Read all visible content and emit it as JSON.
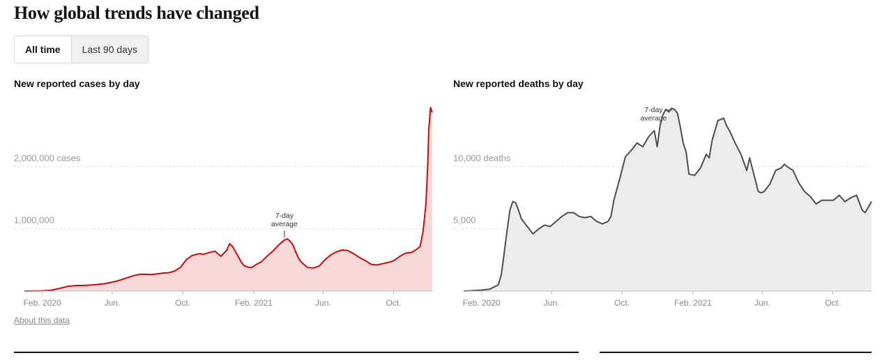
{
  "page": {
    "title": "How global trends have changed",
    "toggle": {
      "options": [
        "All time",
        "Last 90 days"
      ],
      "selected": "All time"
    },
    "about_link": "About this data"
  },
  "chart_data": [
    {
      "id": "cases",
      "type": "area",
      "title": "New reported cases by day",
      "line_color": "#cc0a0a",
      "fill_color": "#f7d9d9",
      "x_range": [
        0,
        706
      ],
      "ylim": [
        0,
        3000000
      ],
      "y_ticks": [
        {
          "value": 1000000,
          "label": "1,000,000"
        },
        {
          "value": 2000000,
          "label": "2,000,000 cases"
        }
      ],
      "x_ticks": [
        {
          "day": 31,
          "label": "Feb. 2020"
        },
        {
          "day": 152,
          "label": "Jun."
        },
        {
          "day": 274,
          "label": "Oct."
        },
        {
          "day": 397,
          "label": "Feb. 2021"
        },
        {
          "day": 517,
          "label": "Jun."
        },
        {
          "day": 639,
          "label": "Oct."
        }
      ],
      "annotation": {
        "lines": [
          "7-day",
          "average"
        ],
        "day": 450,
        "value": 840000
      },
      "x": [
        0,
        30,
        45,
        60,
        75,
        90,
        100,
        120,
        140,
        150,
        160,
        170,
        180,
        190,
        200,
        210,
        220,
        230,
        240,
        250,
        260,
        270,
        280,
        290,
        300,
        305,
        310,
        320,
        330,
        340,
        350,
        355,
        360,
        370,
        375,
        380,
        385,
        390,
        395,
        400,
        410,
        420,
        430,
        440,
        450,
        455,
        460,
        465,
        470,
        475,
        480,
        490,
        500,
        510,
        520,
        530,
        540,
        550,
        560,
        570,
        580,
        590,
        600,
        610,
        620,
        630,
        640,
        650,
        660,
        670,
        680,
        685,
        690,
        695,
        698,
        700,
        703,
        706
      ],
      "values": [
        0,
        5000,
        12000,
        40000,
        75000,
        90000,
        90000,
        100000,
        120000,
        140000,
        160000,
        190000,
        220000,
        250000,
        270000,
        270000,
        265000,
        275000,
        290000,
        295000,
        320000,
        380000,
        500000,
        570000,
        595000,
        600000,
        590000,
        620000,
        640000,
        560000,
        650000,
        760000,
        720000,
        560000,
        470000,
        410000,
        390000,
        380000,
        385000,
        420000,
        470000,
        560000,
        640000,
        740000,
        820000,
        840000,
        800000,
        740000,
        620000,
        520000,
        460000,
        380000,
        370000,
        400000,
        500000,
        580000,
        630000,
        660000,
        650000,
        600000,
        540000,
        490000,
        430000,
        420000,
        440000,
        460000,
        490000,
        560000,
        610000,
        620000,
        680000,
        720000,
        950000,
        1400000,
        2000000,
        2600000,
        2950000,
        2870000
      ]
    },
    {
      "id": "deaths",
      "type": "area",
      "title": "New reported deaths by day",
      "line_color": "#4d4d4d",
      "fill_color": "#ececec",
      "x_range": [
        0,
        706
      ],
      "ylim": [
        0,
        15000
      ],
      "y_ticks": [
        {
          "value": 5000,
          "label": "5,000"
        },
        {
          "value": 10000,
          "label": "10,000 deaths"
        }
      ],
      "x_ticks": [
        {
          "day": 31,
          "label": "Feb. 2020"
        },
        {
          "day": 152,
          "label": "Jun."
        },
        {
          "day": 274,
          "label": "Oct."
        },
        {
          "day": 397,
          "label": "Feb. 2021"
        },
        {
          "day": 517,
          "label": "Jun."
        },
        {
          "day": 639,
          "label": "Oct."
        }
      ],
      "annotation": {
        "lines": [
          "7-day",
          "average"
        ],
        "day": 365,
        "value": 14600
      },
      "x": [
        0,
        30,
        45,
        60,
        65,
        70,
        75,
        80,
        85,
        90,
        95,
        100,
        110,
        120,
        130,
        140,
        150,
        160,
        170,
        180,
        190,
        200,
        210,
        220,
        230,
        240,
        250,
        255,
        260,
        270,
        280,
        290,
        300,
        310,
        320,
        330,
        335,
        340,
        345,
        350,
        355,
        360,
        365,
        370,
        375,
        380,
        385,
        390,
        400,
        410,
        420,
        425,
        430,
        440,
        450,
        455,
        460,
        470,
        480,
        490,
        495,
        500,
        510,
        515,
        520,
        530,
        540,
        550,
        555,
        560,
        570,
        580,
        590,
        600,
        610,
        620,
        630,
        640,
        650,
        660,
        670,
        680,
        690,
        695,
        700,
        706
      ],
      "values": [
        0,
        80,
        150,
        500,
        1300,
        3000,
        4800,
        6500,
        7200,
        7100,
        6500,
        5800,
        5200,
        4600,
        5000,
        5300,
        5200,
        5600,
        6000,
        6300,
        6300,
        6000,
        5900,
        6000,
        5600,
        5400,
        5600,
        6000,
        7300,
        9000,
        10800,
        11300,
        11900,
        11600,
        12400,
        12900,
        11600,
        13300,
        14200,
        14600,
        14400,
        14700,
        14600,
        14300,
        13200,
        11900,
        11200,
        9400,
        9300,
        9900,
        11000,
        10700,
        12100,
        13700,
        13900,
        13300,
        12900,
        11900,
        11000,
        9700,
        10700,
        9800,
        8000,
        7900,
        8000,
        8600,
        9700,
        9900,
        10200,
        10000,
        9700,
        8700,
        8000,
        7600,
        7000,
        7300,
        7300,
        7300,
        7700,
        7200,
        7500,
        7700,
        6500,
        6300,
        6700,
        7200
      ]
    }
  ]
}
